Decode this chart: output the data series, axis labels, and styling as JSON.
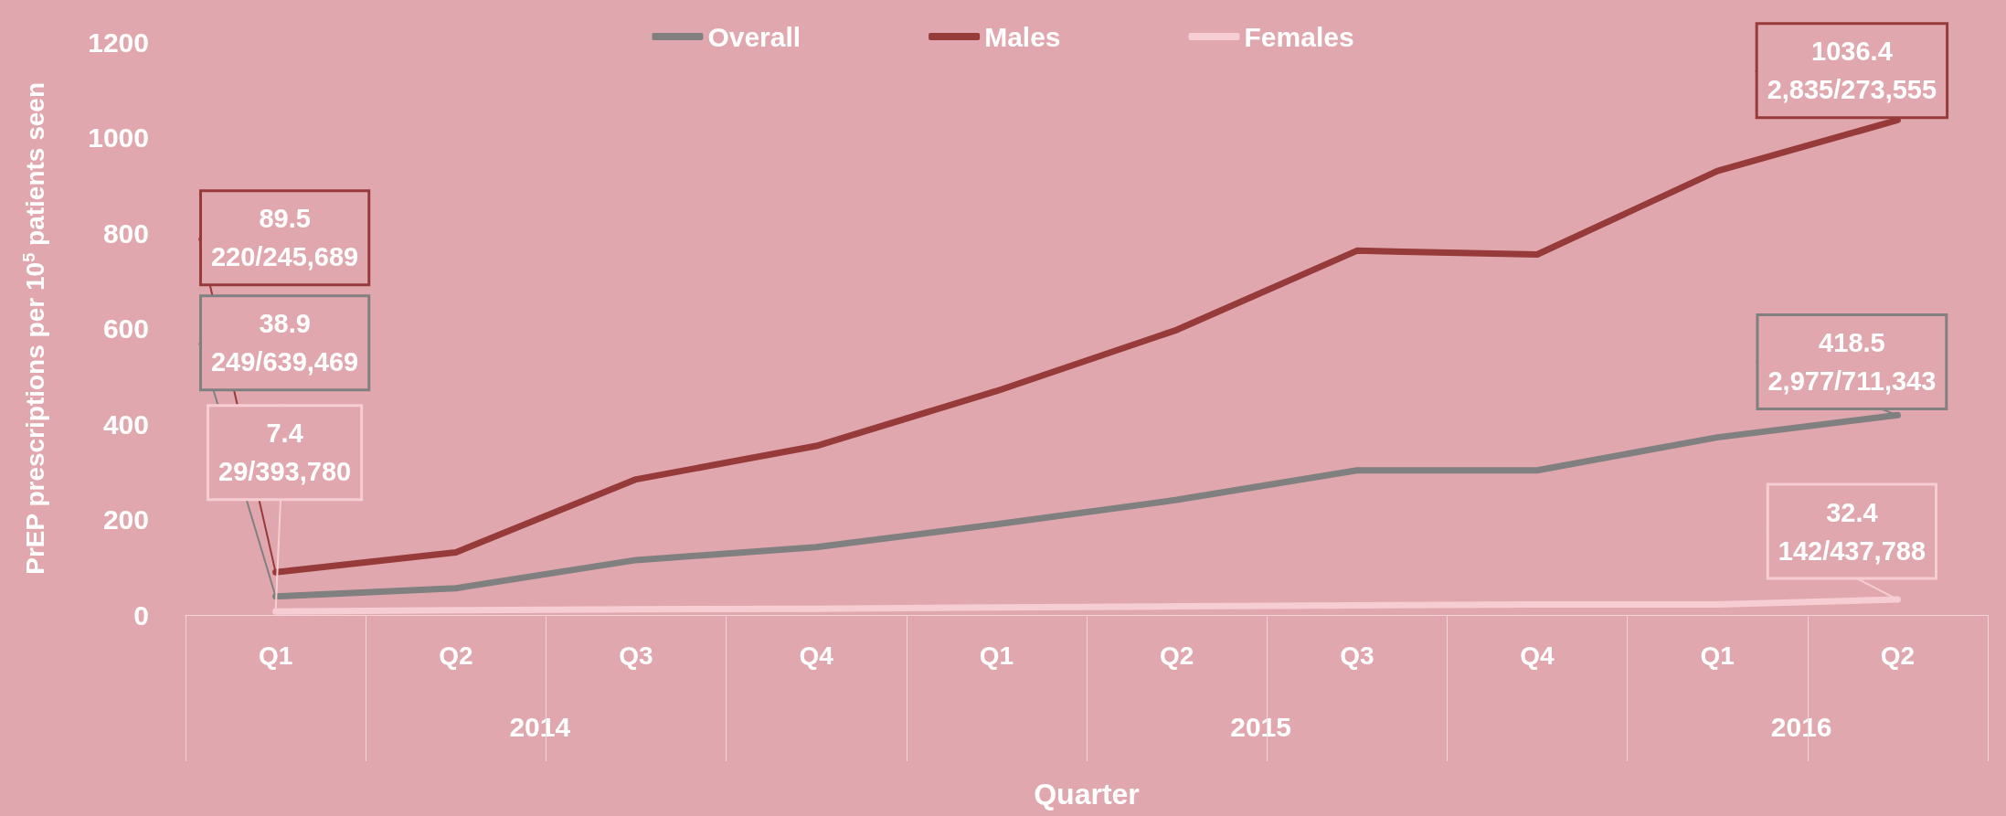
{
  "chart_data": {
    "type": "line",
    "xlabel": "Quarter",
    "ylabel": "PrEP prescriptions per 10$^{5}$ patients seen",
    "categories": [
      "Q1",
      "Q2",
      "Q3",
      "Q4",
      "Q1",
      "Q2",
      "Q3",
      "Q4",
      "Q1",
      "Q2"
    ],
    "annotations": [
      "2014",
      "2015",
      "2016"
    ],
    "ylim": [
      0,
      1200
    ],
    "yticks": [
      0,
      200,
      400,
      600,
      800,
      1000,
      1200
    ],
    "grid": false,
    "legend": "top",
    "marker": "none",
    "line_style": "solid",
    "series": [
      {
        "name": "Overall",
        "color": "#808080",
        "values": [
          38.9,
          56,
          115,
          142,
          190,
          241,
          303,
          303,
          372,
          418.5
        ],
        "value_labels": [
          "38.9\n249/639,469",
          null,
          null,
          null,
          null,
          null,
          null,
          null,
          null,
          "418.5\n2,977/711,343"
        ]
      },
      {
        "name": "Males",
        "color": "#963a3a",
        "values": [
          89.5,
          131,
          284,
          354,
          469,
          597,
          763,
          755,
          930,
          1036.4
        ],
        "value_labels": [
          "89.5\n220/245,689",
          null,
          null,
          null,
          null,
          null,
          null,
          null,
          null,
          "1036.4\n2,835/273,555"
        ]
      },
      {
        "name": "Females",
        "color": "#f7cdd4",
        "values": [
          7.4,
          10,
          12,
          13,
          16,
          18,
          20,
          22,
          22,
          32.4
        ],
        "value_labels": [
          "7.4\n29/393,780",
          null,
          null,
          null,
          null,
          null,
          null,
          null,
          null,
          "32.4\n142/437,788"
        ]
      }
    ]
  }
}
